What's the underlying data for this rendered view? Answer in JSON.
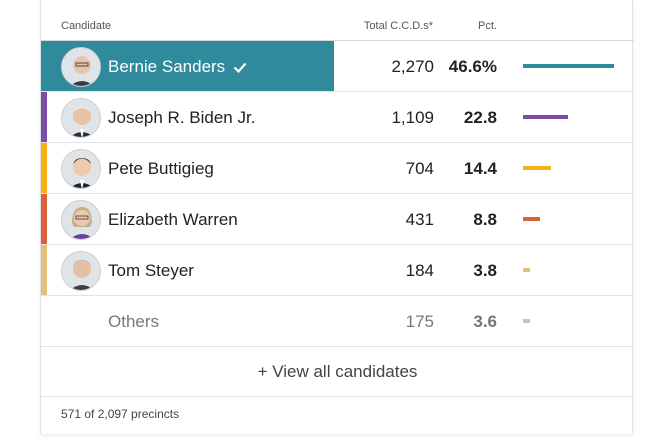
{
  "header": {
    "candidate_label": "Candidate",
    "total_label": "Total C.C.D.s*",
    "pct_label": "Pct."
  },
  "colors": {
    "winner_bg": "#2f8a9c"
  },
  "candidates": [
    {
      "name": "Bernie Sanders",
      "votes": "2,270",
      "pct": "46.6%",
      "pct_value": 46.6,
      "color": "#2f8a9c",
      "winner": true
    },
    {
      "name": "Joseph R. Biden Jr.",
      "votes": "1,109",
      "pct": "22.8",
      "pct_value": 22.8,
      "color": "#7b4ea4",
      "winner": false
    },
    {
      "name": "Pete Buttigieg",
      "votes": "704",
      "pct": "14.4",
      "pct_value": 14.4,
      "color": "#f5b014",
      "winner": false
    },
    {
      "name": "Elizabeth Warren",
      "votes": "431",
      "pct": "8.8",
      "pct_value": 8.8,
      "color": "#d9603b",
      "winner": false
    },
    {
      "name": "Tom Steyer",
      "votes": "184",
      "pct": "3.8",
      "pct_value": 3.8,
      "color": "#e2c07c",
      "winner": false
    },
    {
      "name": "Others",
      "votes": "175",
      "pct": "3.6",
      "pct_value": 3.6,
      "color": "#c4c4c4",
      "winner": false
    }
  ],
  "view_all_label": "+ View all candidates",
  "footer_text": "571 of 2,097 precincts"
}
